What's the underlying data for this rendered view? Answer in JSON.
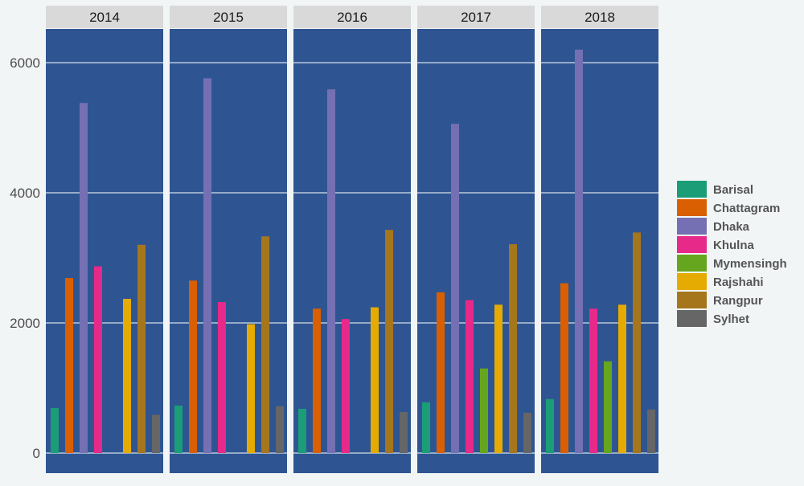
{
  "chart_data": {
    "type": "bar",
    "title": "",
    "xlabel": "",
    "ylabel": "",
    "ylim": [
      0,
      6500
    ],
    "yticks": [
      0,
      2000,
      4000,
      6000
    ],
    "grid": true,
    "legend_position": "right",
    "panel_background": "#2e5592",
    "strip_background": "#d9d9d9",
    "gridline_color": "#ffffff",
    "facets": [
      "2014",
      "2015",
      "2016",
      "2017",
      "2018"
    ],
    "series": [
      {
        "name": "Barisal",
        "color": "#1b9e77",
        "values": [
          690,
          730,
          680,
          780,
          830
        ]
      },
      {
        "name": "Chattagram",
        "color": "#d95f02",
        "values": [
          2690,
          2650,
          2220,
          2470,
          2610
        ]
      },
      {
        "name": "Dhaka",
        "color": "#7570b3",
        "values": [
          5380,
          5760,
          5590,
          5060,
          6200
        ]
      },
      {
        "name": "Khulna",
        "color": "#e7298a",
        "values": [
          2870,
          2320,
          2060,
          2350,
          2220
        ]
      },
      {
        "name": "Mymensingh",
        "color": "#66a61e",
        "values": [
          null,
          null,
          null,
          1300,
          1410
        ]
      },
      {
        "name": "Rajshahi",
        "color": "#e6ab02",
        "values": [
          2370,
          1980,
          2240,
          2280,
          2280
        ]
      },
      {
        "name": "Rangpur",
        "color": "#a6761d",
        "values": [
          3200,
          3330,
          3430,
          3210,
          3390
        ]
      },
      {
        "name": "Sylhet",
        "color": "#666666",
        "values": [
          590,
          720,
          630,
          620,
          670
        ]
      }
    ]
  }
}
